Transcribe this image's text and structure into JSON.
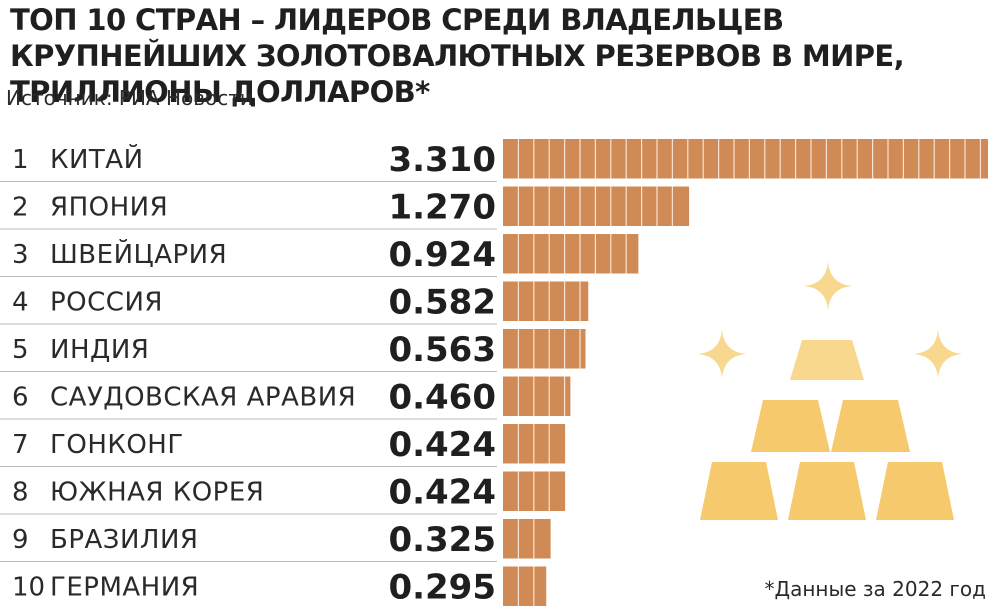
{
  "title": "ТОП 10 СТРАН – ЛИДЕРОВ СРЕДИ ВЛАДЕЛЬЦЕВ КРУПНЕЙШИХ ЗОЛОТОВАЛЮТНЫХ РЕЗЕРВОВ В МИРЕ, ТРИЛЛИОНЫ ДОЛЛАРОВ*",
  "source": "Источник: РИА Новости",
  "footnote": "*Данные за 2022 год",
  "colors": {
    "bar": "#cf8a55",
    "bar_line": "#f7e3d3",
    "divider": "#bdbdbd",
    "gold": "#f5c96c",
    "gold_light": "#f8d88f"
  },
  "icons": [
    "gold-bars-icon",
    "sparkle-icon"
  ],
  "chart_data": {
    "type": "bar",
    "orientation": "horizontal",
    "title": "ТОП 10 СТРАН – ЛИДЕРОВ СРЕДИ ВЛАДЕЛЬЦЕВ КРУПНЕЙШИХ ЗОЛОТОВАЛЮТНЫХ РЕЗЕРВОВ В МИРЕ, ТРИЛЛИОНЫ ДОЛЛАРОВ*",
    "ranks": [
      "1",
      "2",
      "3",
      "4",
      "5",
      "6",
      "7",
      "8",
      "9",
      "10"
    ],
    "categories": [
      "КИТАЙ",
      "ЯПОНИЯ",
      "ШВЕЙЦАРИЯ",
      "РОССИЯ",
      "ИНДИЯ",
      "САУДОВСКАЯ АРАВИЯ",
      "ГОНКОНГ",
      "ЮЖНАЯ КОРЕЯ",
      "БРАЗИЛИЯ",
      "ГЕРМАНИЯ"
    ],
    "values": [
      3.31,
      1.27,
      0.924,
      0.582,
      0.563,
      0.46,
      0.424,
      0.424,
      0.325,
      0.295
    ],
    "value_labels": [
      "3.310",
      "1.270",
      "0.924",
      "0.582",
      "0.563",
      "0.460",
      "0.424",
      "0.424",
      "0.325",
      "0.295"
    ],
    "xlim": [
      0,
      3.31
    ],
    "grid": false,
    "legend": "none"
  }
}
